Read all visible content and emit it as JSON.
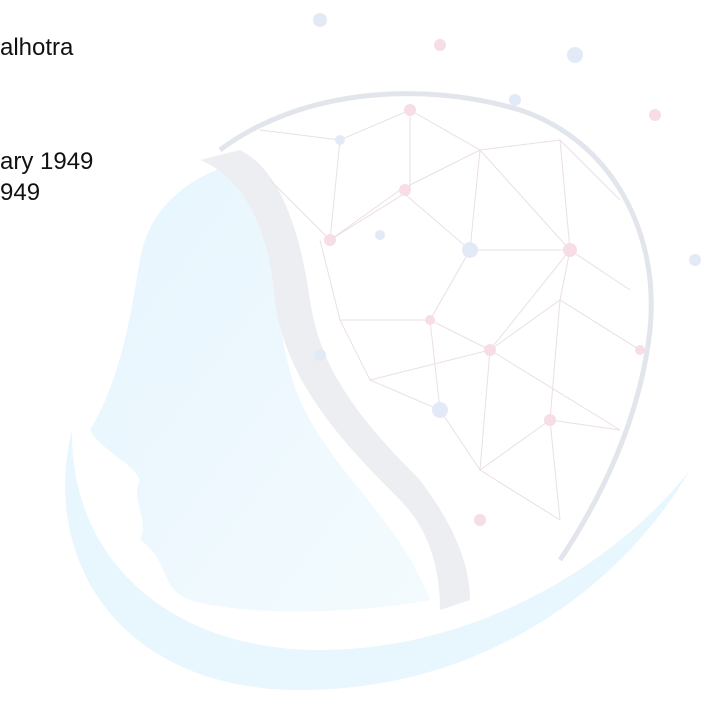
{
  "lines": [
    "alhotra",
    "ary 1949",
    "949"
  ]
}
